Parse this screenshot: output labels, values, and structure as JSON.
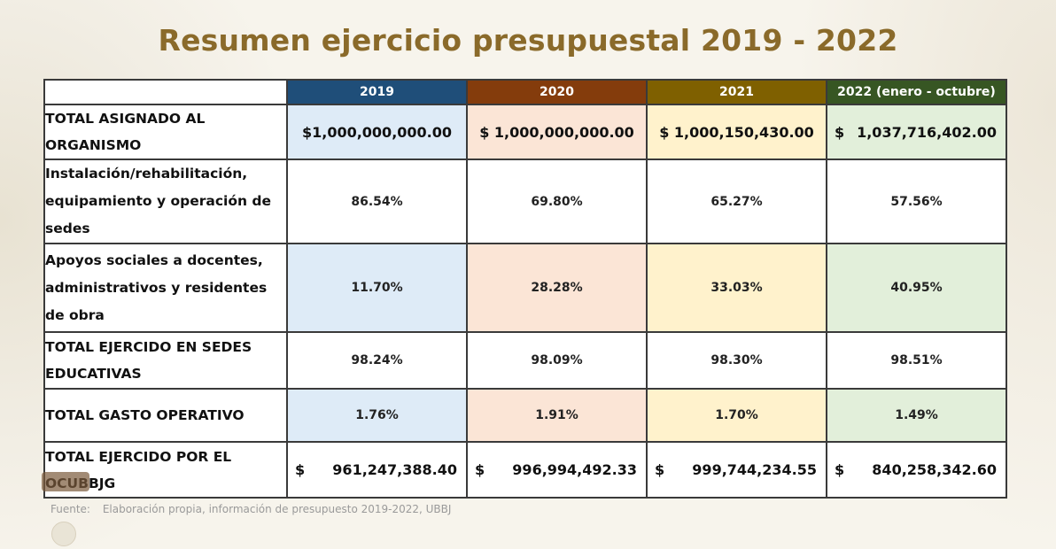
{
  "title": "Resumen ejercicio presupuestal 2019 - 2022",
  "columns": [
    "2019",
    "2020",
    "2021",
    "2022 (enero - octubre)"
  ],
  "colors": {
    "title": "#8a6a2a",
    "header_2019": "#1f4e79",
    "header_2020": "#843c0c",
    "header_2021": "#7f6000",
    "header_2022": "#375623",
    "tint_2019": "#deebf7",
    "tint_2020": "#fbe5d6",
    "tint_2021": "#fff2cc",
    "tint_2022": "#e2efda"
  },
  "rows": [
    {
      "label": "TOTAL ASIGNADO AL ORGANISMO",
      "values": [
        "$1,000,000,000.00",
        "$ 1,000,000,000.00",
        "$ 1,000,150,430.00",
        "1,037,716,402.00"
      ],
      "currency_symbol_2022": "$"
    },
    {
      "label": "Instalación/rehabilitación, equipamiento y operación de sedes",
      "values": [
        "86.54%",
        "69.80%",
        "65.27%",
        "57.56%"
      ]
    },
    {
      "label": "Apoyos sociales a docentes, administrativos y residentes de obra",
      "values": [
        "11.70%",
        "28.28%",
        "33.03%",
        "40.95%"
      ]
    },
    {
      "label": "TOTAL EJERCIDO EN SEDES EDUCATIVAS",
      "values": [
        "98.24%",
        "98.09%",
        "98.30%",
        "98.51%"
      ]
    },
    {
      "label": "TOTAL GASTO OPERATIVO",
      "values": [
        "1.76%",
        "1.91%",
        "1.70%",
        "1.49%"
      ]
    },
    {
      "label": "TOTAL EJERCIDO POR EL OCUBBJG",
      "currency_symbol": "$",
      "values": [
        "961,247,388.40",
        "996,994,492.33",
        "999,744,234.55",
        "840,258,342.60"
      ]
    }
  ],
  "source": {
    "label": "Fuente:",
    "text": "Elaboración propia, información de presupuesto 2019-2022, UBBJ"
  }
}
